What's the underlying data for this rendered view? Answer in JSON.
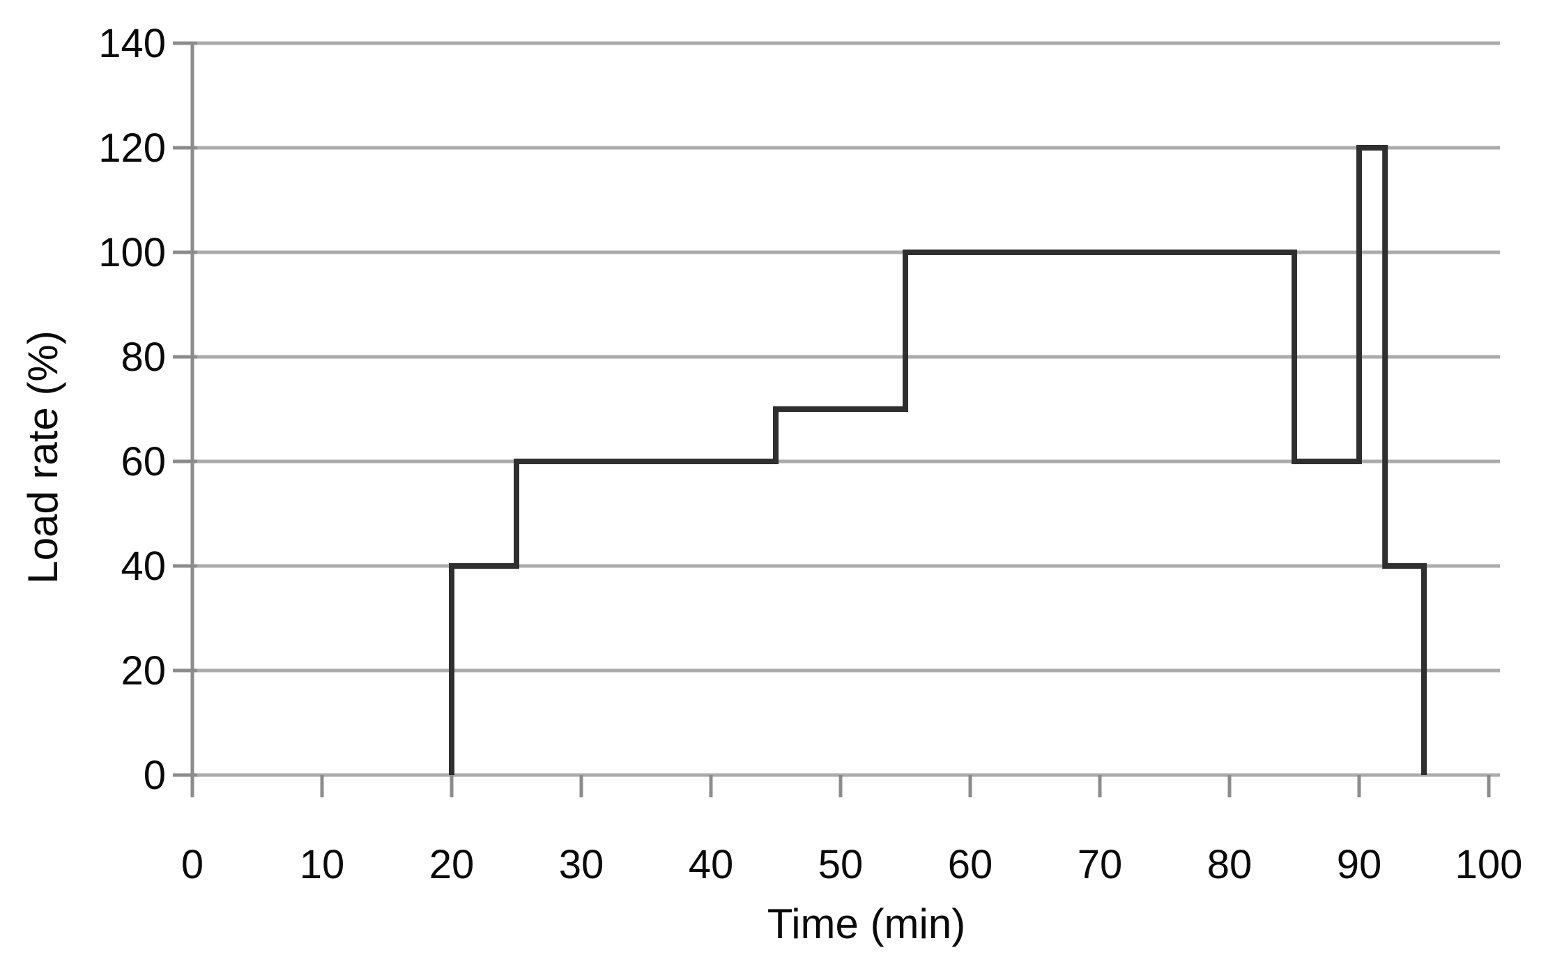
{
  "figure": {
    "background": "#ffffff",
    "kind": "step line chart"
  },
  "colors": {
    "data_line": "#2f2f2f",
    "gridline": "#ababab",
    "axis_line": "#8c8c8c",
    "tick_mark": "#8c8c8c",
    "label_text": "#0a0a0a"
  },
  "chart_data": {
    "type": "line",
    "subtype": "step",
    "title": "",
    "xlabel": "Time (min)",
    "ylabel": "Load rate (%)",
    "xlim": [
      0,
      100
    ],
    "ylim": [
      0,
      140
    ],
    "x_ticks": [
      0,
      10,
      20,
      30,
      40,
      50,
      60,
      70,
      80,
      90,
      100
    ],
    "y_ticks": [
      0,
      20,
      40,
      60,
      80,
      100,
      120,
      140
    ],
    "grid": "horizontal-only",
    "legend": "none",
    "series": [
      {
        "points": [
          [
            20,
            0
          ],
          [
            20,
            40
          ],
          [
            25,
            40
          ],
          [
            25,
            60
          ],
          [
            45,
            60
          ],
          [
            45,
            70
          ],
          [
            55,
            70
          ],
          [
            55,
            100
          ],
          [
            85,
            100
          ],
          [
            85,
            60
          ],
          [
            90,
            60
          ],
          [
            90,
            120
          ],
          [
            92,
            120
          ],
          [
            92,
            40
          ],
          [
            95,
            40
          ],
          [
            95,
            0
          ]
        ]
      }
    ]
  }
}
